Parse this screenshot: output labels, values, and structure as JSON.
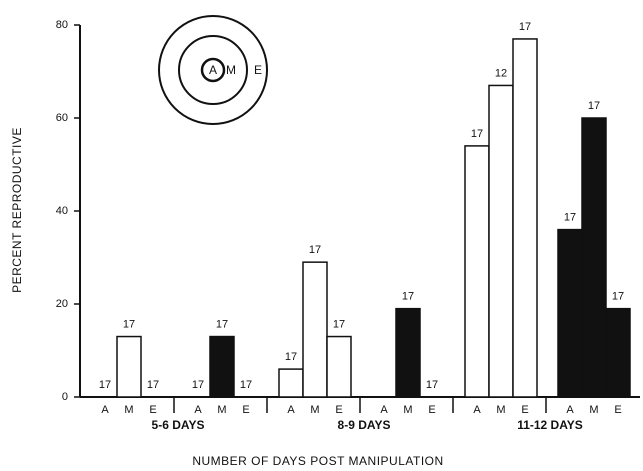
{
  "chart_data": {
    "type": "bar",
    "y_label": "PERCENT REPRODUCTIVE",
    "x_label": "NUMBER OF DAYS POST MANIPULATION",
    "categories": [
      "A",
      "M",
      "E",
      "A",
      "M",
      "E",
      "A",
      "M",
      "E",
      "A",
      "M",
      "E",
      "A",
      "M",
      "E",
      "A",
      "M",
      "E"
    ],
    "values": [
      0,
      13,
      0,
      0,
      13,
      0,
      6,
      29,
      13,
      0,
      19,
      0,
      54,
      67,
      77,
      36,
      60,
      19
    ],
    "colors": [
      "#ffffff",
      "#ffffff",
      "#ffffff",
      "#111111",
      "#111111",
      "#111111",
      "#ffffff",
      "#ffffff",
      "#ffffff",
      "#111111",
      "#111111",
      "#111111",
      "#ffffff",
      "#ffffff",
      "#ffffff",
      "#111111",
      "#111111",
      "#111111"
    ],
    "sample_sizes": [
      17,
      17,
      17,
      17,
      17,
      17,
      17,
      17,
      17,
      null,
      17,
      17,
      17,
      12,
      17,
      17,
      17,
      17
    ],
    "groups": [
      "5-6  DAYS",
      "8-9  DAYS",
      "11-12  DAYS"
    ],
    "inset_labels": [
      "A",
      "M",
      "E"
    ],
    "ylim": [
      0,
      80
    ],
    "yticks": [
      0,
      20,
      40,
      60,
      80
    ]
  }
}
